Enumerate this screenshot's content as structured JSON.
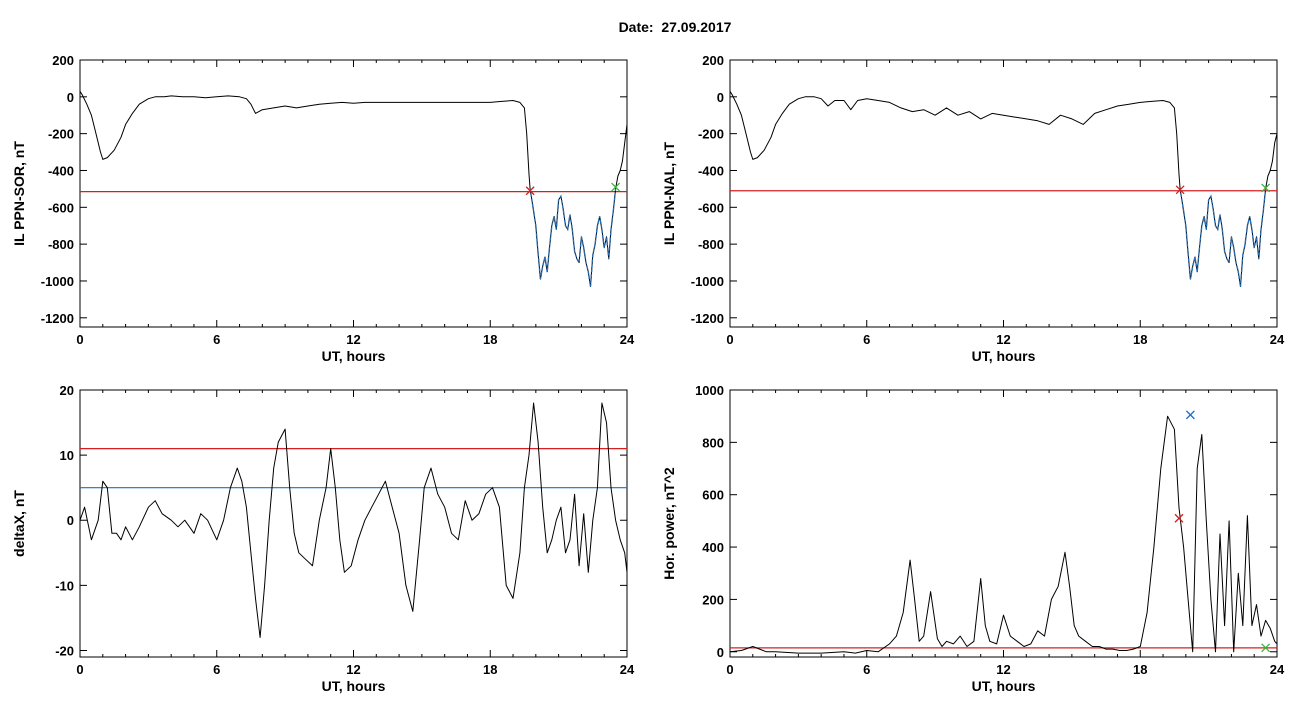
{
  "figure": {
    "date_label": "Date:  27.09.2017"
  },
  "colors": {
    "line": "#000000",
    "threshold_red": "#d62020",
    "threshold_blue": "#1f6fc0",
    "highlight_blue": "#1f6fc0",
    "marker_start": "#d62020",
    "marker_end": "#40b040",
    "marker_peak": "#1f6fc0"
  },
  "chart_data": [
    {
      "id": "p1",
      "type": "line",
      "xlabel": "UT, hours",
      "ylabel": "IL PPN-SOR, nT",
      "xlim": [
        0,
        24
      ],
      "ylim": [
        -1250,
        200
      ],
      "xticks": [
        0,
        6,
        12,
        18,
        24
      ],
      "yticks": [
        200,
        0,
        -200,
        -400,
        -600,
        -800,
        -1000,
        -1200
      ],
      "grid": false,
      "series": [
        {
          "x": [
            0,
            0.1,
            0.3,
            0.5,
            0.7,
            0.9,
            1.0,
            1.2,
            1.5,
            1.8,
            2.0,
            2.3,
            2.6,
            3.0,
            3.3,
            3.7,
            4.0,
            4.5,
            5.0,
            5.5,
            6.0,
            6.5,
            7.0,
            7.3,
            7.5,
            7.7,
            8.0,
            8.5,
            9.0,
            9.5,
            10.0,
            10.5,
            11.0,
            11.5,
            12.0,
            12.5,
            13.0,
            13.5,
            14.0,
            14.5,
            15.0,
            15.5,
            16.0,
            16.5,
            17.0,
            17.5,
            18.0,
            18.5,
            19.0,
            19.3,
            19.5,
            19.6,
            19.7,
            19.75,
            19.8,
            19.9,
            20.0,
            20.1,
            20.2,
            20.3,
            20.4,
            20.5,
            20.6,
            20.7,
            20.8,
            20.9,
            21.0,
            21.1,
            21.2,
            21.3,
            21.4,
            21.5,
            21.6,
            21.7,
            21.8,
            21.9,
            22.0,
            22.1,
            22.2,
            22.3,
            22.4,
            22.5,
            22.6,
            22.7,
            22.8,
            22.9,
            23.0,
            23.1,
            23.2,
            23.3,
            23.4,
            23.5,
            23.6,
            23.7,
            23.8,
            23.9,
            24.0
          ],
          "y": [
            30,
            10,
            -40,
            -100,
            -200,
            -300,
            -340,
            -330,
            -290,
            -220,
            -150,
            -90,
            -40,
            -10,
            0,
            0,
            5,
            0,
            0,
            -5,
            0,
            5,
            0,
            -10,
            -40,
            -90,
            -70,
            -60,
            -50,
            -60,
            -50,
            -40,
            -35,
            -30,
            -35,
            -30,
            -30,
            -30,
            -30,
            -30,
            -30,
            -30,
            -30,
            -30,
            -30,
            -30,
            -30,
            -25,
            -20,
            -30,
            -60,
            -200,
            -420,
            -500,
            -540,
            -620,
            -700,
            -850,
            -990,
            -920,
            -870,
            -950,
            -820,
            -700,
            -650,
            -720,
            -560,
            -540,
            -610,
            -700,
            -720,
            -640,
            -720,
            -840,
            -880,
            -900,
            -760,
            -820,
            -900,
            -950,
            -1030,
            -860,
            -800,
            -700,
            -650,
            -720,
            -820,
            -760,
            -880,
            -720,
            -620,
            -500,
            -430,
            -400,
            -350,
            -250,
            -150
          ],
          "highlight_range": [
            19.75,
            23.5
          ]
        }
      ],
      "hlines": [
        {
          "y": -515,
          "color": "red"
        }
      ],
      "markers": [
        {
          "x": 19.75,
          "y": -510,
          "color": "red"
        },
        {
          "x": 23.5,
          "y": -490,
          "color": "green"
        }
      ]
    },
    {
      "id": "p2",
      "type": "line",
      "xlabel": "UT, hours",
      "ylabel": "IL PPN-NAL, nT",
      "xlim": [
        0,
        24
      ],
      "ylim": [
        -1250,
        200
      ],
      "xticks": [
        0,
        6,
        12,
        18,
        24
      ],
      "yticks": [
        200,
        0,
        -200,
        -400,
        -600,
        -800,
        -1000,
        -1200
      ],
      "grid": false,
      "series": [
        {
          "x": [
            0,
            0.1,
            0.3,
            0.5,
            0.7,
            0.9,
            1.0,
            1.2,
            1.5,
            1.8,
            2.0,
            2.3,
            2.6,
            3.0,
            3.3,
            3.7,
            4.0,
            4.3,
            4.6,
            5.0,
            5.3,
            5.6,
            6.0,
            6.5,
            7.0,
            7.5,
            8.0,
            8.5,
            9.0,
            9.5,
            10.0,
            10.5,
            11.0,
            11.5,
            12.0,
            12.5,
            13.0,
            13.5,
            14.0,
            14.5,
            15.0,
            15.5,
            16.0,
            16.5,
            17.0,
            17.5,
            18.0,
            18.5,
            19.0,
            19.3,
            19.5,
            19.6,
            19.7,
            19.75,
            19.8,
            19.9,
            20.0,
            20.1,
            20.2,
            20.3,
            20.4,
            20.5,
            20.6,
            20.7,
            20.8,
            20.9,
            21.0,
            21.1,
            21.2,
            21.3,
            21.4,
            21.5,
            21.6,
            21.7,
            21.8,
            21.9,
            22.0,
            22.1,
            22.2,
            22.3,
            22.4,
            22.5,
            22.6,
            22.7,
            22.8,
            22.9,
            23.0,
            23.1,
            23.2,
            23.3,
            23.4,
            23.5,
            23.6,
            23.7,
            23.8,
            23.9,
            24.0
          ],
          "y": [
            30,
            10,
            -40,
            -100,
            -200,
            -300,
            -340,
            -330,
            -290,
            -220,
            -150,
            -90,
            -40,
            -10,
            0,
            0,
            -10,
            -50,
            -20,
            -20,
            -70,
            -20,
            -10,
            -20,
            -30,
            -60,
            -80,
            -70,
            -100,
            -60,
            -100,
            -80,
            -120,
            -90,
            -100,
            -110,
            -120,
            -130,
            -150,
            -100,
            -120,
            -150,
            -90,
            -70,
            -50,
            -40,
            -30,
            -25,
            -20,
            -30,
            -60,
            -200,
            -420,
            -500,
            -540,
            -620,
            -700,
            -850,
            -990,
            -920,
            -870,
            -950,
            -820,
            -700,
            -650,
            -720,
            -560,
            -540,
            -610,
            -700,
            -720,
            -640,
            -720,
            -840,
            -880,
            -900,
            -760,
            -820,
            -900,
            -950,
            -1030,
            -860,
            -800,
            -700,
            -650,
            -720,
            -820,
            -760,
            -880,
            -720,
            -620,
            -500,
            -430,
            -400,
            -350,
            -250,
            -200
          ],
          "highlight_range": [
            19.75,
            23.5
          ]
        }
      ],
      "hlines": [
        {
          "y": -510,
          "color": "red"
        }
      ],
      "markers": [
        {
          "x": 19.75,
          "y": -505,
          "color": "red"
        },
        {
          "x": 23.5,
          "y": -495,
          "color": "green"
        }
      ]
    },
    {
      "id": "p3",
      "type": "line",
      "xlabel": "UT, hours",
      "ylabel": "deltaX, nT",
      "xlim": [
        0,
        24
      ],
      "ylim": [
        -21,
        20
      ],
      "xticks": [
        0,
        6,
        12,
        18,
        24
      ],
      "yticks": [
        20,
        10,
        0,
        -10,
        -20
      ],
      "grid": false,
      "series": [
        {
          "x": [
            0,
            0.2,
            0.5,
            0.8,
            1.0,
            1.2,
            1.4,
            1.6,
            1.8,
            2.0,
            2.3,
            2.6,
            3.0,
            3.3,
            3.6,
            4.0,
            4.3,
            4.6,
            5.0,
            5.3,
            5.6,
            6.0,
            6.3,
            6.6,
            6.9,
            7.1,
            7.3,
            7.5,
            7.7,
            7.9,
            8.1,
            8.3,
            8.5,
            8.7,
            9.0,
            9.2,
            9.4,
            9.6,
            9.9,
            10.2,
            10.5,
            10.8,
            11.0,
            11.2,
            11.4,
            11.6,
            11.9,
            12.2,
            12.5,
            12.8,
            13.1,
            13.4,
            13.7,
            14.0,
            14.3,
            14.6,
            14.9,
            15.1,
            15.4,
            15.7,
            16.0,
            16.3,
            16.6,
            16.9,
            17.2,
            17.5,
            17.8,
            18.1,
            18.4,
            18.7,
            19.0,
            19.3,
            19.5,
            19.7,
            19.9,
            20.1,
            20.3,
            20.5,
            20.7,
            20.9,
            21.1,
            21.3,
            21.5,
            21.7,
            21.9,
            22.1,
            22.3,
            22.5,
            22.7,
            22.9,
            23.1,
            23.3,
            23.5,
            23.7,
            23.9,
            24.0
          ],
          "y": [
            0,
            2,
            -3,
            0,
            6,
            5,
            -2,
            -2,
            -3,
            -1,
            -3,
            -1,
            2,
            3,
            1,
            0,
            -1,
            0,
            -2,
            1,
            0,
            -3,
            0,
            5,
            8,
            6,
            2,
            -5,
            -12,
            -18,
            -10,
            0,
            8,
            12,
            14,
            5,
            -2,
            -5,
            -6,
            -7,
            0,
            5,
            11,
            5,
            -3,
            -8,
            -7,
            -3,
            0,
            2,
            4,
            6,
            2,
            -2,
            -10,
            -14,
            -3,
            5,
            8,
            4,
            2,
            -2,
            -3,
            3,
            0,
            1,
            4,
            5,
            2,
            -10,
            -12,
            -5,
            5,
            10,
            18,
            12,
            2,
            -5,
            -3,
            0,
            2,
            -5,
            -3,
            4,
            -7,
            1,
            -8,
            0,
            5,
            18,
            15,
            5,
            0,
            -3,
            -5,
            -8
          ],
          "highlight_range": null
        }
      ],
      "hlines": [
        {
          "y": 11,
          "color": "red"
        },
        {
          "y": 5,
          "color": "blue"
        }
      ],
      "markers": []
    },
    {
      "id": "p4",
      "type": "line",
      "xlabel": "UT, hours",
      "ylabel": "Hor. power, nT^2",
      "xlim": [
        0,
        24
      ],
      "ylim": [
        -20,
        1000
      ],
      "xticks": [
        0,
        6,
        12,
        18,
        24
      ],
      "yticks": [
        1000,
        800,
        600,
        400,
        200,
        0
      ],
      "grid": false,
      "series": [
        {
          "x": [
            0,
            0.5,
            1.0,
            1.3,
            1.6,
            2.0,
            3.0,
            4.0,
            5.0,
            5.5,
            6.0,
            6.5,
            7.0,
            7.3,
            7.6,
            7.9,
            8.1,
            8.3,
            8.5,
            8.8,
            9.1,
            9.3,
            9.5,
            9.8,
            10.1,
            10.4,
            10.7,
            11.0,
            11.2,
            11.4,
            11.7,
            12.0,
            12.3,
            12.6,
            12.9,
            13.2,
            13.5,
            13.8,
            14.1,
            14.4,
            14.7,
            14.9,
            15.1,
            15.3,
            15.6,
            15.9,
            16.2,
            16.5,
            16.8,
            17.1,
            17.4,
            17.7,
            18.0,
            18.3,
            18.6,
            18.9,
            19.2,
            19.5,
            19.7,
            19.9,
            20.1,
            20.3,
            20.5,
            20.7,
            20.9,
            21.1,
            21.3,
            21.5,
            21.7,
            21.9,
            22.1,
            22.3,
            22.5,
            22.7,
            22.9,
            23.1,
            23.3,
            23.5,
            23.7,
            23.9,
            24.0
          ],
          "y": [
            0,
            5,
            20,
            10,
            0,
            0,
            -5,
            -5,
            0,
            -5,
            5,
            0,
            30,
            60,
            150,
            350,
            200,
            40,
            60,
            230,
            50,
            20,
            40,
            30,
            60,
            20,
            40,
            280,
            100,
            40,
            30,
            140,
            60,
            40,
            20,
            30,
            80,
            60,
            200,
            250,
            380,
            250,
            100,
            60,
            40,
            20,
            20,
            10,
            10,
            5,
            5,
            10,
            20,
            150,
            400,
            700,
            900,
            850,
            550,
            400,
            200,
            0,
            700,
            830,
            500,
            200,
            0,
            450,
            100,
            500,
            0,
            300,
            100,
            520,
            100,
            180,
            60,
            120,
            90,
            40,
            30
          ],
          "highlight_range": null
        }
      ],
      "hlines": [
        {
          "y": 15,
          "color": "red"
        }
      ],
      "markers": [
        {
          "x": 19.7,
          "y": 510,
          "color": "red"
        },
        {
          "x": 20.2,
          "y": 905,
          "color": "blue"
        },
        {
          "x": 23.5,
          "y": 15,
          "color": "green"
        }
      ]
    }
  ]
}
